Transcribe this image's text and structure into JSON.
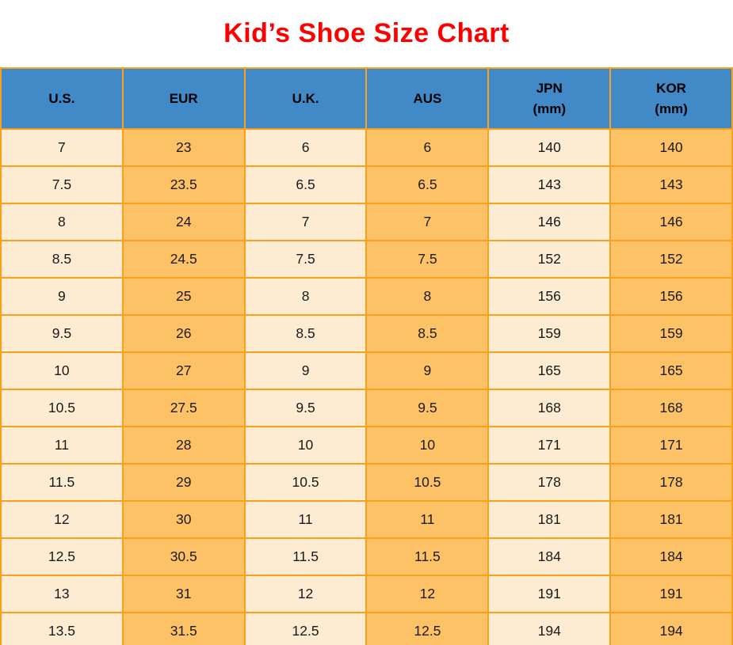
{
  "title": "Kid’s Shoe Size Chart",
  "colors": {
    "title": "#fe0000",
    "header_bg": "#4189c7",
    "header_text": "#000000",
    "cell_text": "#1a1a1a",
    "col_cream": "#fdebd2",
    "col_orange": "#fec266",
    "border": "#f9a11b",
    "page_bg": "#ffffff"
  },
  "chart_data": {
    "type": "table",
    "title": "Kid’s Shoe Size Chart",
    "columns": [
      {
        "label": "U.S.",
        "unit": ""
      },
      {
        "label": "EUR",
        "unit": ""
      },
      {
        "label": "U.K.",
        "unit": ""
      },
      {
        "label": "AUS",
        "unit": ""
      },
      {
        "label": "JPN",
        "unit": "(mm)"
      },
      {
        "label": "KOR",
        "unit": "(mm)"
      }
    ],
    "rows": [
      [
        "7",
        "23",
        "6",
        "6",
        "140",
        "140"
      ],
      [
        "7.5",
        "23.5",
        "6.5",
        "6.5",
        "143",
        "143"
      ],
      [
        "8",
        "24",
        "7",
        "7",
        "146",
        "146"
      ],
      [
        "8.5",
        "24.5",
        "7.5",
        "7.5",
        "152",
        "152"
      ],
      [
        "9",
        "25",
        "8",
        "8",
        "156",
        "156"
      ],
      [
        "9.5",
        "26",
        "8.5",
        "8.5",
        "159",
        "159"
      ],
      [
        "10",
        "27",
        "9",
        "9",
        "165",
        "165"
      ],
      [
        "10.5",
        "27.5",
        "9.5",
        "9.5",
        "168",
        "168"
      ],
      [
        "11",
        "28",
        "10",
        "10",
        "171",
        "171"
      ],
      [
        "11.5",
        "29",
        "10.5",
        "10.5",
        "178",
        "178"
      ],
      [
        "12",
        "30",
        "11",
        "11",
        "181",
        "181"
      ],
      [
        "12.5",
        "30.5",
        "11.5",
        "11.5",
        "184",
        "184"
      ],
      [
        "13",
        "31",
        "12",
        "12",
        "191",
        "191"
      ],
      [
        "13.5",
        "31.5",
        "12.5",
        "12.5",
        "194",
        "194"
      ]
    ]
  }
}
